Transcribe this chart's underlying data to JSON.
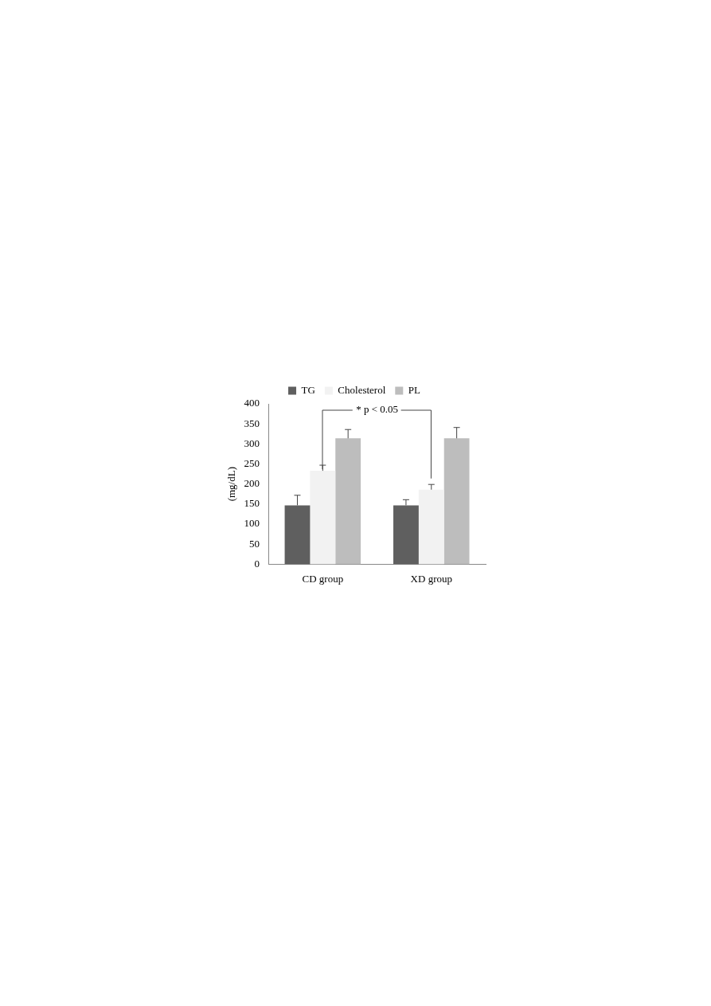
{
  "chart_data": {
    "type": "bar",
    "ylabel": "(mg/dL)",
    "categories": [
      "CD group",
      "XD group"
    ],
    "series": [
      {
        "name": "TG",
        "color": "#5f5f5f",
        "values": [
          147,
          147
        ],
        "errors": [
          [
            147,
            172
          ],
          [
            147,
            161
          ]
        ]
      },
      {
        "name": "Cholesterol",
        "color": "#f2f2f2",
        "values": [
          233,
          186
        ],
        "errors": [
          [
            233,
            247
          ],
          [
            186,
            199
          ]
        ]
      },
      {
        "name": "PL",
        "color": "#bdbdbd",
        "values": [
          314,
          314
        ],
        "errors": [
          [
            314,
            336
          ],
          [
            314,
            341
          ]
        ]
      }
    ],
    "ylim": [
      0,
      400
    ],
    "yticks": [
      0,
      50,
      100,
      150,
      200,
      250,
      300,
      350,
      400
    ],
    "grid": false,
    "legend": "top",
    "annotations": [
      {
        "text": "* p < 0.05",
        "x": "CD group",
        "y": 233
      }
    ]
  }
}
